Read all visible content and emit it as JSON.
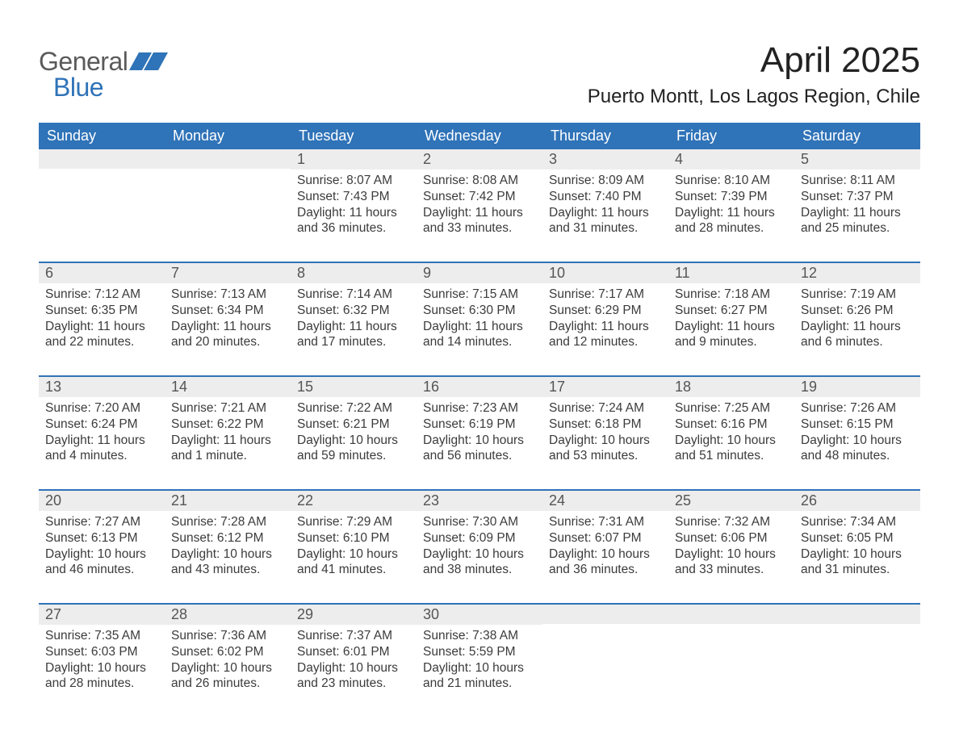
{
  "brand": {
    "word1": "General",
    "word2": "Blue"
  },
  "title": "April 2025",
  "location": "Puerto Montt, Los Lagos Region, Chile",
  "colors": {
    "header_blue": "#2f73b8",
    "day_bg": "#ededed",
    "background": "#ffffff",
    "text": "#2b2b2b"
  },
  "dow": [
    "Sunday",
    "Monday",
    "Tuesday",
    "Wednesday",
    "Thursday",
    "Friday",
    "Saturday"
  ],
  "weeks": [
    [
      {
        "n": "",
        "sunrise": "",
        "sunset": "",
        "daylight": ""
      },
      {
        "n": "",
        "sunrise": "",
        "sunset": "",
        "daylight": ""
      },
      {
        "n": "1",
        "sunrise": "8:07 AM",
        "sunset": "7:43 PM",
        "daylight": "11 hours and 36 minutes."
      },
      {
        "n": "2",
        "sunrise": "8:08 AM",
        "sunset": "7:42 PM",
        "daylight": "11 hours and 33 minutes."
      },
      {
        "n": "3",
        "sunrise": "8:09 AM",
        "sunset": "7:40 PM",
        "daylight": "11 hours and 31 minutes."
      },
      {
        "n": "4",
        "sunrise": "8:10 AM",
        "sunset": "7:39 PM",
        "daylight": "11 hours and 28 minutes."
      },
      {
        "n": "5",
        "sunrise": "8:11 AM",
        "sunset": "7:37 PM",
        "daylight": "11 hours and 25 minutes."
      }
    ],
    [
      {
        "n": "6",
        "sunrise": "7:12 AM",
        "sunset": "6:35 PM",
        "daylight": "11 hours and 22 minutes."
      },
      {
        "n": "7",
        "sunrise": "7:13 AM",
        "sunset": "6:34 PM",
        "daylight": "11 hours and 20 minutes."
      },
      {
        "n": "8",
        "sunrise": "7:14 AM",
        "sunset": "6:32 PM",
        "daylight": "11 hours and 17 minutes."
      },
      {
        "n": "9",
        "sunrise": "7:15 AM",
        "sunset": "6:30 PM",
        "daylight": "11 hours and 14 minutes."
      },
      {
        "n": "10",
        "sunrise": "7:17 AM",
        "sunset": "6:29 PM",
        "daylight": "11 hours and 12 minutes."
      },
      {
        "n": "11",
        "sunrise": "7:18 AM",
        "sunset": "6:27 PM",
        "daylight": "11 hours and 9 minutes."
      },
      {
        "n": "12",
        "sunrise": "7:19 AM",
        "sunset": "6:26 PM",
        "daylight": "11 hours and 6 minutes."
      }
    ],
    [
      {
        "n": "13",
        "sunrise": "7:20 AM",
        "sunset": "6:24 PM",
        "daylight": "11 hours and 4 minutes."
      },
      {
        "n": "14",
        "sunrise": "7:21 AM",
        "sunset": "6:22 PM",
        "daylight": "11 hours and 1 minute."
      },
      {
        "n": "15",
        "sunrise": "7:22 AM",
        "sunset": "6:21 PM",
        "daylight": "10 hours and 59 minutes."
      },
      {
        "n": "16",
        "sunrise": "7:23 AM",
        "sunset": "6:19 PM",
        "daylight": "10 hours and 56 minutes."
      },
      {
        "n": "17",
        "sunrise": "7:24 AM",
        "sunset": "6:18 PM",
        "daylight": "10 hours and 53 minutes."
      },
      {
        "n": "18",
        "sunrise": "7:25 AM",
        "sunset": "6:16 PM",
        "daylight": "10 hours and 51 minutes."
      },
      {
        "n": "19",
        "sunrise": "7:26 AM",
        "sunset": "6:15 PM",
        "daylight": "10 hours and 48 minutes."
      }
    ],
    [
      {
        "n": "20",
        "sunrise": "7:27 AM",
        "sunset": "6:13 PM",
        "daylight": "10 hours and 46 minutes."
      },
      {
        "n": "21",
        "sunrise": "7:28 AM",
        "sunset": "6:12 PM",
        "daylight": "10 hours and 43 minutes."
      },
      {
        "n": "22",
        "sunrise": "7:29 AM",
        "sunset": "6:10 PM",
        "daylight": "10 hours and 41 minutes."
      },
      {
        "n": "23",
        "sunrise": "7:30 AM",
        "sunset": "6:09 PM",
        "daylight": "10 hours and 38 minutes."
      },
      {
        "n": "24",
        "sunrise": "7:31 AM",
        "sunset": "6:07 PM",
        "daylight": "10 hours and 36 minutes."
      },
      {
        "n": "25",
        "sunrise": "7:32 AM",
        "sunset": "6:06 PM",
        "daylight": "10 hours and 33 minutes."
      },
      {
        "n": "26",
        "sunrise": "7:34 AM",
        "sunset": "6:05 PM",
        "daylight": "10 hours and 31 minutes."
      }
    ],
    [
      {
        "n": "27",
        "sunrise": "7:35 AM",
        "sunset": "6:03 PM",
        "daylight": "10 hours and 28 minutes."
      },
      {
        "n": "28",
        "sunrise": "7:36 AM",
        "sunset": "6:02 PM",
        "daylight": "10 hours and 26 minutes."
      },
      {
        "n": "29",
        "sunrise": "7:37 AM",
        "sunset": "6:01 PM",
        "daylight": "10 hours and 23 minutes."
      },
      {
        "n": "30",
        "sunrise": "7:38 AM",
        "sunset": "5:59 PM",
        "daylight": "10 hours and 21 minutes."
      },
      {
        "n": "",
        "sunrise": "",
        "sunset": "",
        "daylight": ""
      },
      {
        "n": "",
        "sunrise": "",
        "sunset": "",
        "daylight": ""
      },
      {
        "n": "",
        "sunrise": "",
        "sunset": "",
        "daylight": ""
      }
    ]
  ]
}
